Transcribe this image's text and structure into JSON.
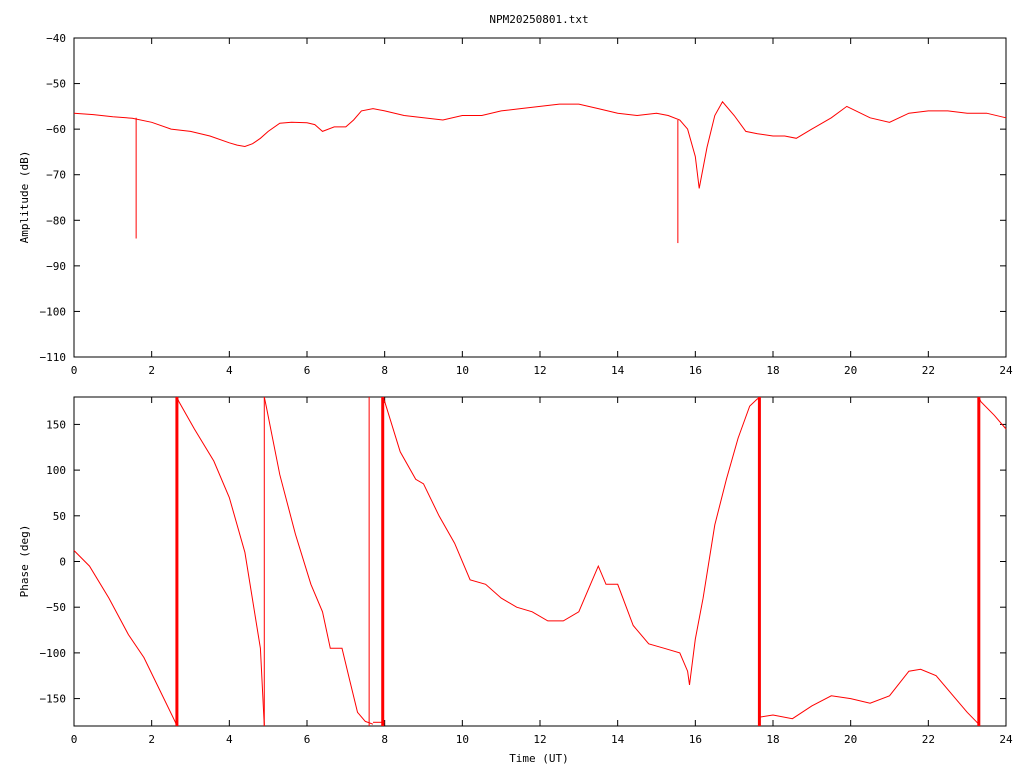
{
  "title": "NPM20250801.txt",
  "colors": {
    "trace": "#ff0000",
    "axes": "#000000",
    "background": "#ffffff"
  },
  "chart_data": [
    {
      "type": "line",
      "name": "amplitude",
      "title": "NPM20250801.txt",
      "xlabel": "",
      "ylabel": "Amplitude (dB)",
      "xlim": [
        0,
        24
      ],
      "ylim": [
        -110,
        -40
      ],
      "xticks": [
        0,
        2,
        4,
        6,
        8,
        10,
        12,
        14,
        16,
        18,
        20,
        22,
        24
      ],
      "yticks": [
        -40,
        -50,
        -60,
        -70,
        -80,
        -90,
        -100,
        -110
      ],
      "grid": false,
      "legend": "none",
      "series": [
        {
          "x": [
            0,
            0.5,
            1,
            1.5,
            2,
            2.5,
            3,
            3.5,
            4,
            4.2,
            4.4,
            4.6,
            4.8,
            5,
            5.3,
            5.6,
            6,
            6.2,
            6.4,
            6.7,
            7,
            7.2,
            7.4,
            7.7,
            8,
            8.5,
            9,
            9.5,
            10,
            10.5,
            11,
            11.5,
            12,
            12.5,
            13,
            13.5,
            14,
            14.5,
            15,
            15.3,
            15.6,
            15.8,
            16,
            16.1,
            16.3,
            16.5,
            16.7,
            17,
            17.3,
            17.6,
            18,
            18.3,
            18.6,
            19,
            19.5,
            19.9,
            20.5,
            21,
            21.5,
            22,
            22.5,
            23,
            23.5,
            24
          ],
          "y": [
            -56.5,
            -56.8,
            -57.3,
            -57.6,
            -58.5,
            -60,
            -60.5,
            -61.5,
            -63,
            -63.5,
            -63.8,
            -63.2,
            -62,
            -60.5,
            -58.7,
            -58.5,
            -58.6,
            -59,
            -60.5,
            -59.5,
            -59.5,
            -58,
            -56,
            -55.5,
            -56,
            -57,
            -57.5,
            -58,
            -57,
            -57,
            -56,
            -55.5,
            -55,
            -54.5,
            -54.5,
            -55.5,
            -56.5,
            -57,
            -56.5,
            -57,
            -58,
            -60,
            -66,
            -73,
            -64,
            -57,
            -54,
            -57,
            -60.5,
            -61,
            -61.5,
            -61.5,
            -62,
            -60,
            -57.5,
            -55,
            -57.5,
            -58.5,
            -56.5,
            -56,
            -56,
            -56.5,
            -56.5,
            -57.5
          ]
        }
      ],
      "spikes": [
        {
          "x": 1.6,
          "from": -57.5,
          "to": -84
        },
        {
          "x": 15.55,
          "from": -58,
          "to": -85
        }
      ]
    },
    {
      "type": "line",
      "name": "phase",
      "title": "",
      "xlabel": "Time (UT)",
      "ylabel": "Phase (deg)",
      "xlim": [
        0,
        24
      ],
      "ylim": [
        -180,
        180
      ],
      "xticks": [
        0,
        2,
        4,
        6,
        8,
        10,
        12,
        14,
        16,
        18,
        20,
        22,
        24
      ],
      "yticks": [
        150,
        100,
        50,
        0,
        -50,
        -100,
        -150
      ],
      "grid": false,
      "legend": "none",
      "segments": [
        {
          "x": [
            0,
            0.4,
            0.9,
            1.4,
            1.8,
            2.2,
            2.6,
            2.65
          ],
          "y": [
            12,
            -5,
            -40,
            -80,
            -105,
            -140,
            -175,
            -180
          ]
        },
        {
          "x": [
            2.65,
            2.7,
            3.1,
            3.6,
            4.0,
            4.4,
            4.8,
            4.9
          ],
          "y": [
            180,
            175,
            145,
            110,
            70,
            10,
            -95,
            -180
          ]
        },
        {
          "x": [
            4.9,
            4.95,
            5.3,
            5.7,
            6.1,
            6.4,
            6.6,
            6.9,
            7.1,
            7.3,
            7.5,
            7.7
          ],
          "y": [
            180,
            170,
            95,
            30,
            -25,
            -55,
            -95,
            -95,
            -130,
            -165,
            -175,
            -178
          ]
        },
        {
          "x": [
            7.7,
            8.0
          ],
          "y": [
            -176,
            -176
          ]
        },
        {
          "x": [
            7.95,
            8.0,
            8.4,
            8.8,
            9.0,
            9.4,
            9.8,
            10.2,
            10.6,
            11.0,
            11.4,
            11.8,
            12.2,
            12.6,
            13.0,
            13.3,
            13.5,
            13.7,
            14.0,
            14.4,
            14.8,
            15.2,
            15.6,
            15.8,
            15.85,
            16.0,
            16.2,
            16.5,
            16.8,
            17.1,
            17.4,
            17.6,
            17.65
          ],
          "y": [
            180,
            175,
            120,
            90,
            85,
            50,
            20,
            -20,
            -25,
            -40,
            -50,
            -55,
            -65,
            -65,
            -55,
            -25,
            -5,
            -25,
            -25,
            -70,
            -90,
            -95,
            -100,
            -120,
            -135,
            -85,
            -40,
            40,
            90,
            135,
            170,
            178,
            178
          ]
        },
        {
          "x": [
            17.65,
            17.7,
            18.0,
            18.5,
            19.0,
            19.5,
            20.0,
            20.5,
            21.0,
            21.5,
            21.8,
            22.2,
            22.7,
            23.0,
            23.3
          ],
          "y": [
            -170,
            -170,
            -168,
            -172,
            -158,
            -147,
            -150,
            -155,
            -147,
            -120,
            -118,
            -125,
            -150,
            -165,
            -178
          ]
        },
        {
          "x": [
            23.3,
            23.35,
            23.7,
            24
          ],
          "y": [
            180,
            175,
            160,
            145
          ]
        }
      ],
      "jumps": [
        {
          "x": 2.65,
          "width": "bold"
        },
        {
          "x": 4.9,
          "width": "thin"
        },
        {
          "x": 7.6,
          "width": "thin"
        },
        {
          "x": 7.95,
          "width": "bold"
        },
        {
          "x": 17.65,
          "width": "bold"
        },
        {
          "x": 23.3,
          "width": "bold"
        }
      ]
    }
  ]
}
